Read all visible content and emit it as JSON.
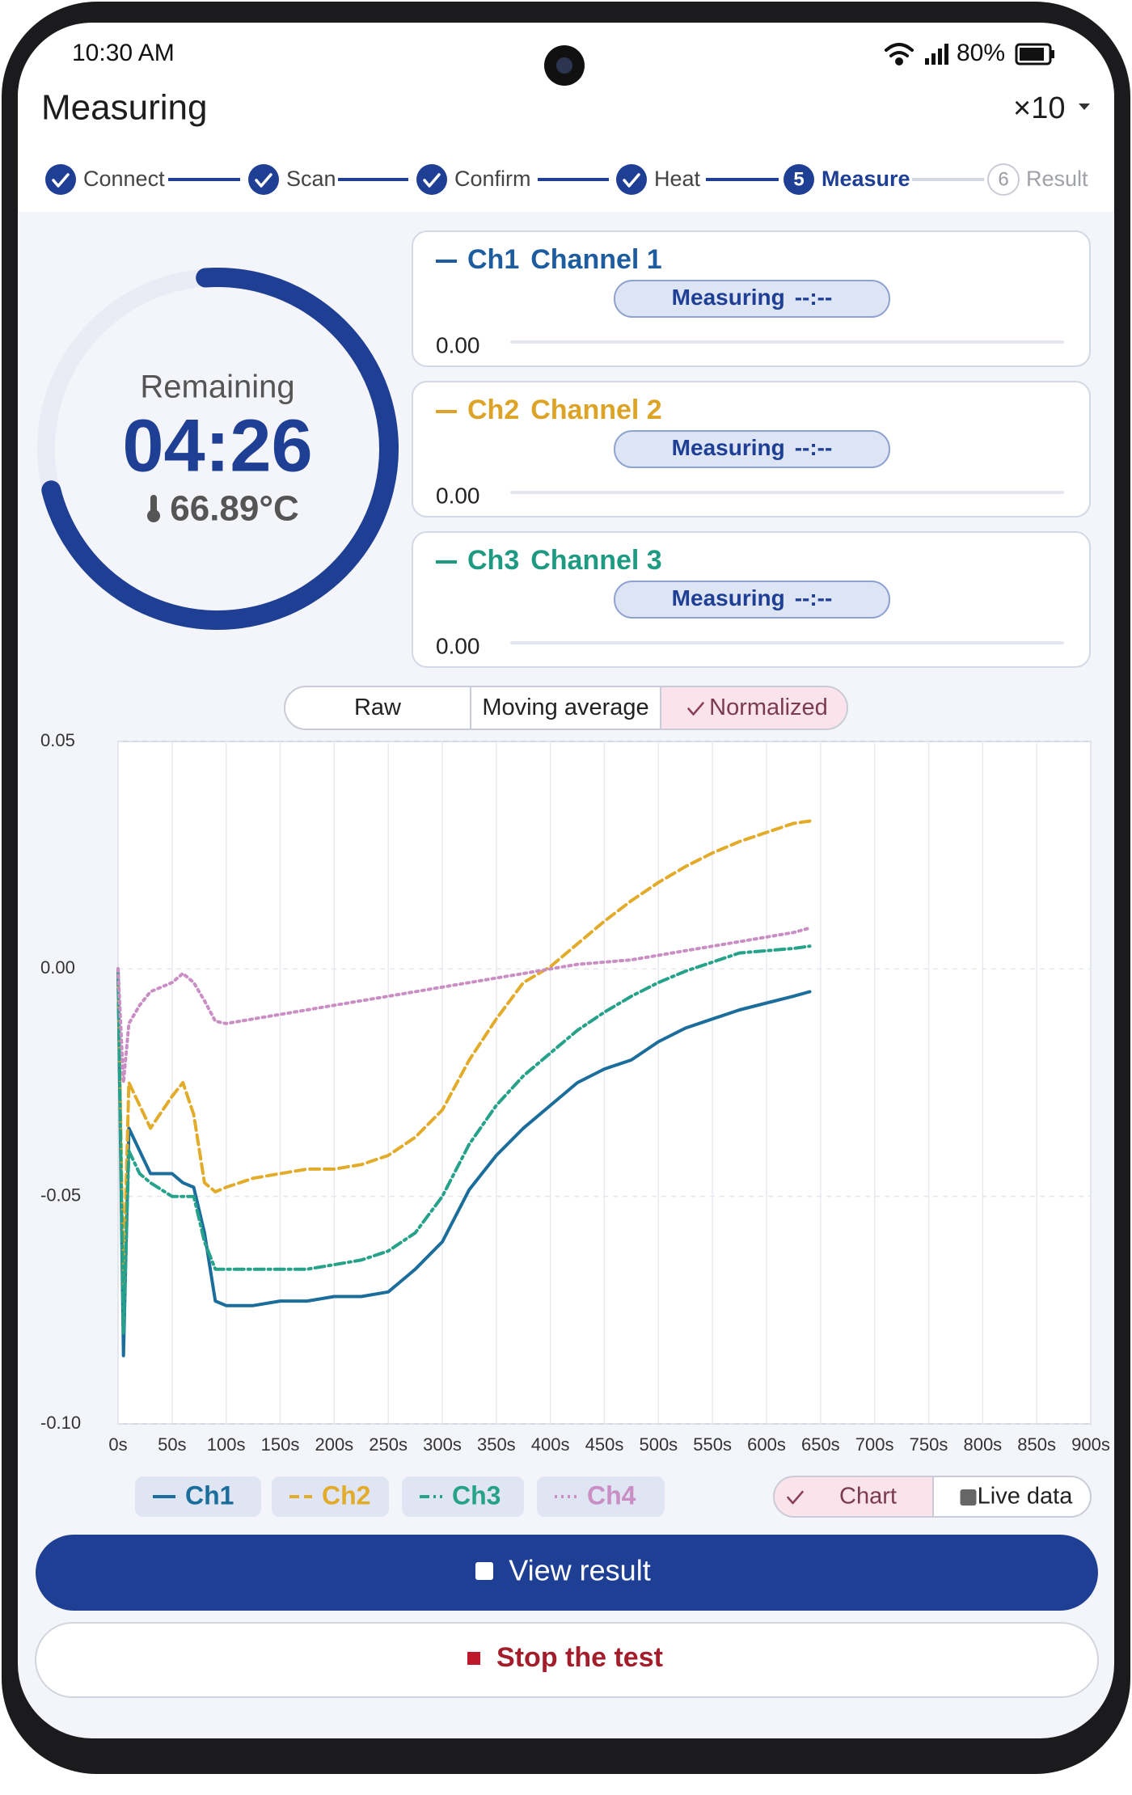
{
  "status_bar": {
    "time": "10:30 AM",
    "battery": "80%"
  },
  "header": {
    "title": "Measuring",
    "multiplier": "×10"
  },
  "steps": [
    {
      "label": "Connect",
      "state": "done"
    },
    {
      "label": "Scan",
      "state": "done"
    },
    {
      "label": "Confirm",
      "state": "done"
    },
    {
      "label": "Heat",
      "state": "done"
    },
    {
      "number": "5",
      "label": "Measure",
      "state": "active"
    },
    {
      "number": "6",
      "label": "Result",
      "state": "pending"
    }
  ],
  "timer": {
    "label": "Remaining",
    "time": "04:26",
    "temperature": "66.89°C"
  },
  "channels": [
    {
      "id": "Ch1",
      "name": "Channel 1",
      "status": "Measuring",
      "eta": "--:--",
      "value": "0.00",
      "color": "#1d5c9e"
    },
    {
      "id": "Ch2",
      "name": "Channel 2",
      "status": "Measuring",
      "eta": "--:--",
      "value": "0.00",
      "color": "#dca327"
    },
    {
      "id": "Ch3",
      "name": "Channel 3",
      "status": "Measuring",
      "eta": "--:--",
      "value": "0.00",
      "color": "#1e9a82"
    }
  ],
  "view_tabs": {
    "options": [
      "Raw",
      "Moving average",
      "Normalized"
    ],
    "selected": 2
  },
  "chart_data": {
    "type": "line",
    "x": [
      0,
      5,
      10,
      20,
      30,
      50,
      60,
      70,
      80,
      90,
      100,
      125,
      150,
      175,
      200,
      225,
      250,
      275,
      300,
      325,
      350,
      375,
      400,
      425,
      450,
      475,
      500,
      525,
      550,
      575,
      600,
      625,
      640
    ],
    "series": [
      {
        "name": "Ch1",
        "color": "#1b6d9c",
        "style": "solid",
        "values": [
          0,
          -0.085,
          -0.035,
          -0.04,
          -0.045,
          -0.045,
          -0.047,
          -0.048,
          -0.058,
          -0.073,
          -0.074,
          -0.074,
          -0.073,
          -0.073,
          -0.072,
          -0.072,
          -0.071,
          -0.066,
          -0.06,
          -0.0485,
          -0.041,
          -0.035,
          -0.03,
          -0.025,
          -0.022,
          -0.02,
          -0.016,
          -0.013,
          -0.011,
          -0.009,
          -0.0075,
          -0.006,
          -0.005
        ]
      },
      {
        "name": "Ch2",
        "color": "#e3ab2a",
        "style": "dashed",
        "values": [
          0,
          -0.07,
          -0.025,
          -0.03,
          -0.035,
          -0.028,
          -0.025,
          -0.032,
          -0.047,
          -0.049,
          -0.048,
          -0.046,
          -0.045,
          -0.044,
          -0.044,
          -0.043,
          -0.041,
          -0.037,
          -0.031,
          -0.02,
          -0.011,
          -0.003,
          0.0005,
          0.0055,
          0.0105,
          0.015,
          0.019,
          0.0225,
          0.0255,
          0.028,
          0.03,
          0.032,
          0.0325
        ]
      },
      {
        "name": "Ch3",
        "color": "#27a28a",
        "style": "dashdot",
        "values": [
          0,
          -0.08,
          -0.04,
          -0.045,
          -0.047,
          -0.05,
          -0.05,
          -0.05,
          -0.06,
          -0.066,
          -0.066,
          -0.066,
          -0.066,
          -0.066,
          -0.065,
          -0.064,
          -0.062,
          -0.058,
          -0.05,
          -0.0385,
          -0.03,
          -0.0235,
          -0.0185,
          -0.0135,
          -0.0095,
          -0.006,
          -0.003,
          -0.0005,
          0.0015,
          0.0035,
          0.004,
          0.0045,
          0.005
        ]
      },
      {
        "name": "Ch4",
        "color": "#c98ec4",
        "style": "dotted",
        "values": [
          0,
          -0.025,
          -0.012,
          -0.008,
          -0.005,
          -0.003,
          -0.001,
          -0.003,
          -0.007,
          -0.0115,
          -0.012,
          -0.011,
          -0.01,
          -0.009,
          -0.008,
          -0.007,
          -0.006,
          -0.005,
          -0.004,
          -0.003,
          -0.002,
          -0.001,
          0,
          0.001,
          0.0015,
          0.002,
          0.003,
          0.004,
          0.005,
          0.006,
          0.007,
          0.008,
          0.009
        ]
      }
    ],
    "xlim": [
      0,
      900
    ],
    "xticks": [
      {
        "value": 0,
        "label": "0s"
      },
      {
        "value": 50,
        "label": "50s"
      },
      {
        "value": 100,
        "label": "100s"
      },
      {
        "value": 150,
        "label": "150s"
      },
      {
        "value": 200,
        "label": "200s"
      },
      {
        "value": 250,
        "label": "250s"
      },
      {
        "value": 300,
        "label": "300s"
      },
      {
        "value": 350,
        "label": "350s"
      },
      {
        "value": 400,
        "label": "400s"
      },
      {
        "value": 450,
        "label": "450s"
      },
      {
        "value": 500,
        "label": "500s"
      },
      {
        "value": 550,
        "label": "550s"
      },
      {
        "value": 600,
        "label": "600s"
      },
      {
        "value": 650,
        "label": "650s"
      },
      {
        "value": 700,
        "label": "700s"
      },
      {
        "value": 750,
        "label": "750s"
      },
      {
        "value": 800,
        "label": "800s"
      },
      {
        "value": 850,
        "label": "850s"
      },
      {
        "value": 900,
        "label": "900s"
      }
    ],
    "ylim": [
      -0.1,
      0.05
    ],
    "yticks": [
      0.05,
      {
        "value": 0,
        "label": "0.00"
      },
      -0.05,
      {
        "value": -0.1,
        "label": "-0.10"
      }
    ],
    "grid": true
  },
  "display_toggle": {
    "options": [
      "Chart",
      "Live data"
    ],
    "selected": 0
  },
  "actions": {
    "primary": "View result",
    "secondary": "Stop the test"
  }
}
